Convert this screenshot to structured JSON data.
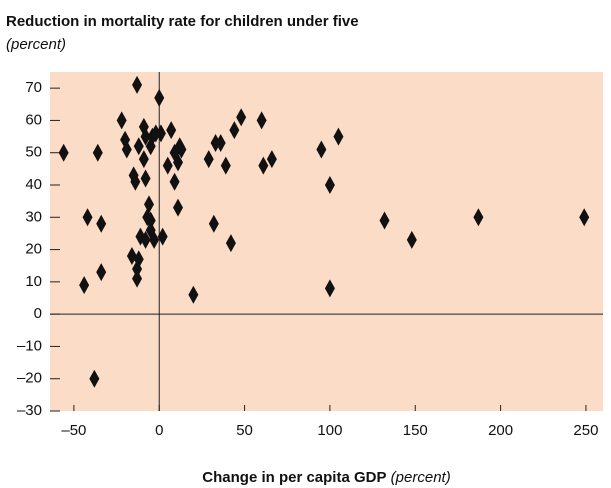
{
  "chart_data": {
    "type": "scatter",
    "title": "Reduction in mortality rate for children under five",
    "subtitle": "(percent)",
    "xlabel": "Change in per capita GDP",
    "xlabel_unit": "(percent)",
    "color": "#111111",
    "background": "#fbdcc6",
    "xlim": [
      -64,
      260
    ],
    "ylim": [
      -30,
      75
    ],
    "xticks": [
      {
        "value": -50,
        "label": "–50"
      },
      0,
      50,
      100,
      150,
      200,
      250
    ],
    "yticks": [
      {
        "value": -30,
        "label": "–30"
      },
      {
        "value": -20,
        "label": "–20"
      },
      {
        "value": -10,
        "label": "–10"
      },
      0,
      10,
      20,
      30,
      40,
      50,
      60,
      70
    ],
    "x": [
      -56,
      -44,
      -42,
      -36,
      -34,
      -34,
      -38,
      -22,
      -20,
      -19,
      -16,
      -15,
      -14,
      -13,
      -13,
      -13,
      -12,
      -12,
      -11,
      -9,
      -9,
      -8,
      -8,
      -8,
      -7,
      -6,
      -5,
      -5,
      -5,
      -4,
      -3,
      -2,
      0,
      1,
      2,
      5,
      7,
      9,
      9,
      11,
      11,
      12,
      13,
      20,
      29,
      32,
      33,
      36,
      39,
      42,
      44,
      48,
      60,
      61,
      66,
      95,
      100,
      100,
      105,
      132,
      148,
      187,
      249
    ],
    "values": [
      50,
      9,
      30,
      50,
      28,
      13,
      -20,
      60,
      54,
      51,
      18,
      43,
      41,
      71,
      14,
      11,
      52,
      17,
      24,
      48,
      58,
      42,
      23,
      55,
      30,
      34,
      52,
      29,
      26,
      55,
      23,
      56,
      67,
      56,
      24,
      46,
      57,
      41,
      50,
      33,
      47,
      52,
      51,
      6,
      48,
      28,
      53,
      53,
      46,
      22,
      57,
      61,
      60,
      46,
      48,
      51,
      8,
      40,
      55,
      29,
      23,
      30,
      30
    ]
  }
}
